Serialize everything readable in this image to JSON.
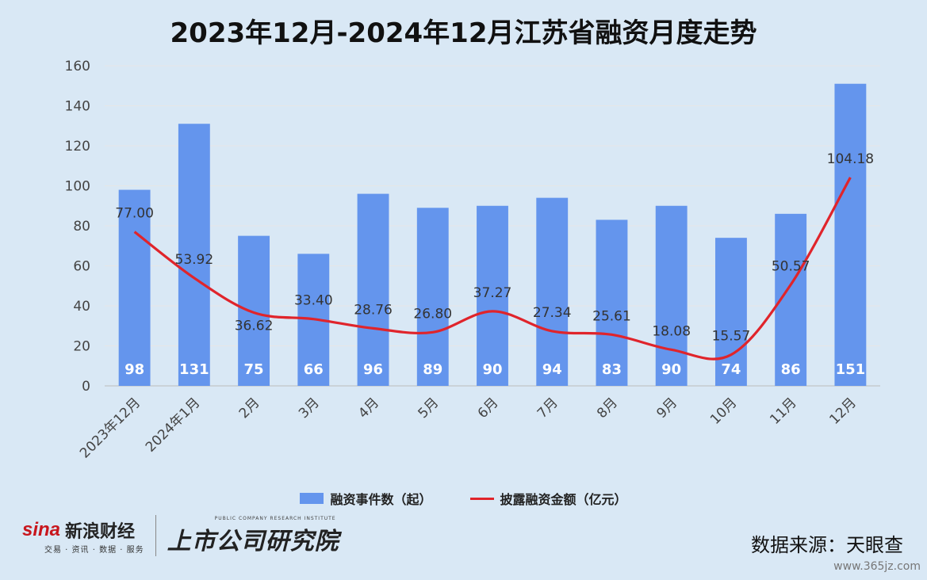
{
  "title": "2023年12月-2024年12月江苏省融资月度走势",
  "chart_data": {
    "type": "bar+line",
    "title": "2023年12月-2024年12月江苏省融资月度走势",
    "categories": [
      "2023年12月",
      "2024年1月",
      "2月",
      "3月",
      "4月",
      "5月",
      "6月",
      "7月",
      "8月",
      "9月",
      "10月",
      "11月",
      "12月"
    ],
    "series": [
      {
        "name": "融资事件数（起）",
        "type": "bar",
        "color": "#6495ed",
        "values": [
          98,
          131,
          75,
          66,
          96,
          89,
          90,
          94,
          83,
          90,
          74,
          86,
          151
        ]
      },
      {
        "name": "披露融资金额（亿元）",
        "type": "line",
        "color": "#e0242b",
        "values": [
          77.0,
          53.92,
          36.62,
          33.4,
          28.76,
          26.8,
          37.27,
          27.34,
          25.61,
          18.08,
          15.57,
          50.57,
          104.18
        ],
        "labels": [
          "77.00",
          "53.92",
          "36.62",
          "33.40",
          "28.76",
          "26.80",
          "37.27",
          "27.34",
          "25.61",
          "18.08",
          "15.57",
          "50.57",
          "104.18"
        ]
      }
    ],
    "yticks": [
      "0",
      "20",
      "40",
      "60",
      "80",
      "100",
      "120",
      "140",
      "160"
    ],
    "ylim": [
      0,
      160
    ],
    "grid": true,
    "legend_position": "bottom"
  },
  "legend": {
    "bar_label": "融资事件数（起）",
    "line_label": "披露融资金额（亿元）"
  },
  "footer": {
    "sina_word": "sina",
    "sina_cn": "新浪财经",
    "sina_sub": "交易 · 资讯 · 数据 · 服务",
    "yanjiu_en": "PUBLIC COMPANY RESEARCH INSTITUTE",
    "yanjiu_cn": "上市公司研究院",
    "source": "数据来源：天眼查",
    "watermark": "www.365jz.com"
  }
}
